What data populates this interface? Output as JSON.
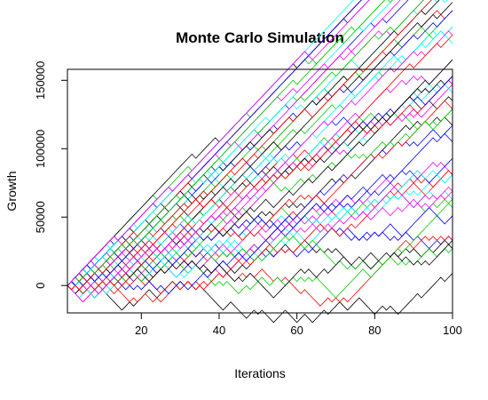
{
  "chart_data": {
    "type": "line",
    "title": "Monte Carlo Simulation",
    "xlabel": "Iterations",
    "ylabel": "Growth",
    "xlim": [
      1,
      100
    ],
    "ylim": [
      -20000,
      158000
    ],
    "x_ticks": [
      20,
      40,
      60,
      80,
      100
    ],
    "y_ticks": [
      0,
      50000,
      100000,
      150000
    ],
    "y_tick_labels": [
      "0",
      "50000",
      "100000",
      "150000"
    ],
    "grid": false,
    "legend": "none",
    "series_colors": [
      "#000000",
      "#ff0000",
      "#00cd00",
      "#0000ff",
      "#00ffff",
      "#ff00ff"
    ],
    "series_count": 60,
    "series_summary": {
      "start": {
        "x": 1,
        "y": 0
      },
      "end_range_at_x100": [
        18000,
        150000
      ],
      "step_per_iteration": 3000,
      "min_y_observed": -13000
    }
  }
}
